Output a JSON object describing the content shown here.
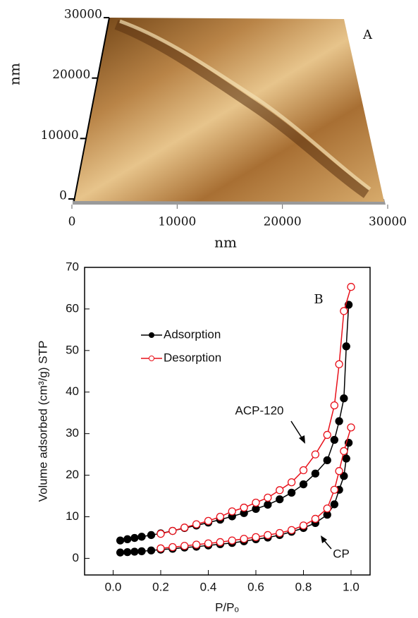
{
  "chart_data": [
    {
      "type": "surface",
      "label": "A",
      "xlabel": "nm",
      "ylabel": "nm",
      "xlim": [
        0,
        30000
      ],
      "ylim": [
        0,
        30000
      ],
      "xticks": [
        0,
        10000,
        20000,
        30000
      ],
      "yticks": [
        0,
        10000,
        20000,
        30000
      ]
    },
    {
      "type": "line",
      "label": "B",
      "xlabel": "P/Pₒ",
      "ylabel": "Volume adsorbed (cm³/g) STP",
      "xlim": [
        -0.12,
        1.08
      ],
      "ylim": [
        -4,
        70
      ],
      "xticks": [
        {
          "value": 0,
          "label": "0.0"
        },
        {
          "value": 0.2,
          "label": "0.2"
        },
        {
          "value": 0.4,
          "label": "0.4"
        },
        {
          "value": 0.6,
          "label": "0.6"
        },
        {
          "value": 0.8,
          "label": "0.8"
        },
        {
          "value": 1,
          "label": "1.0"
        }
      ],
      "yticks": [
        0,
        10,
        20,
        30,
        40,
        50,
        60,
        70
      ],
      "legend": "upper left",
      "series": [
        {
          "name": "Adsorption",
          "color": "#000000",
          "marker": "filled",
          "x": [
            0.03,
            0.06,
            0.09,
            0.12,
            0.16,
            0.2,
            0.25,
            0.3,
            0.35,
            0.4,
            0.45,
            0.5,
            0.55,
            0.6,
            0.65,
            0.7,
            0.75,
            0.8,
            0.85,
            0.9,
            0.93,
            0.95,
            0.97,
            0.98,
            0.99
          ],
          "values": [
            4.3,
            4.6,
            4.9,
            5.2,
            5.6,
            6.0,
            6.6,
            7.3,
            7.9,
            8.6,
            9.3,
            10.1,
            10.9,
            11.9,
            12.9,
            14.2,
            15.8,
            17.8,
            20.4,
            23.6,
            28.5,
            33,
            38.5,
            51,
            61
          ]
        },
        {
          "name": "Desorption",
          "color": "#e8101a",
          "marker": "open",
          "x": [
            0.2,
            0.25,
            0.3,
            0.35,
            0.4,
            0.45,
            0.5,
            0.55,
            0.6,
            0.65,
            0.7,
            0.75,
            0.8,
            0.85,
            0.9,
            0.93,
            0.95,
            0.97,
            1.0
          ],
          "values": [
            5.9,
            6.6,
            7.4,
            8.2,
            9.0,
            10.0,
            11.3,
            12.2,
            13.4,
            14.6,
            16.4,
            18.3,
            21.2,
            25.0,
            29.7,
            36.8,
            46.7,
            59.5,
            65.3
          ]
        },
        {
          "name": "Adsorption",
          "color": "#000000",
          "marker": "filled",
          "x": [
            0.03,
            0.06,
            0.09,
            0.12,
            0.16,
            0.2,
            0.25,
            0.3,
            0.35,
            0.4,
            0.45,
            0.5,
            0.55,
            0.6,
            0.65,
            0.7,
            0.75,
            0.8,
            0.85,
            0.9,
            0.93,
            0.95,
            0.97,
            0.98,
            0.99
          ],
          "values": [
            1.4,
            1.5,
            1.6,
            1.7,
            1.9,
            2.1,
            2.3,
            2.6,
            2.8,
            3.1,
            3.4,
            3.7,
            4.1,
            4.6,
            5.0,
            5.6,
            6.4,
            7.3,
            8.5,
            10.5,
            13.0,
            16.5,
            19.8,
            24,
            27.8
          ]
        },
        {
          "name": "Desorption",
          "color": "#e8101a",
          "marker": "open",
          "x": [
            0.2,
            0.25,
            0.3,
            0.35,
            0.4,
            0.45,
            0.5,
            0.55,
            0.6,
            0.65,
            0.7,
            0.75,
            0.8,
            0.85,
            0.9,
            0.93,
            0.95,
            0.97,
            1.0
          ],
          "values": [
            2.4,
            2.7,
            3.0,
            3.3,
            3.6,
            3.9,
            4.3,
            4.7,
            5.1,
            5.6,
            6.1,
            6.8,
            7.9,
            9.5,
            12.0,
            16.5,
            21,
            25.8,
            31.5
          ]
        }
      ],
      "annotations": [
        "ACP-120",
        "CP"
      ]
    }
  ]
}
